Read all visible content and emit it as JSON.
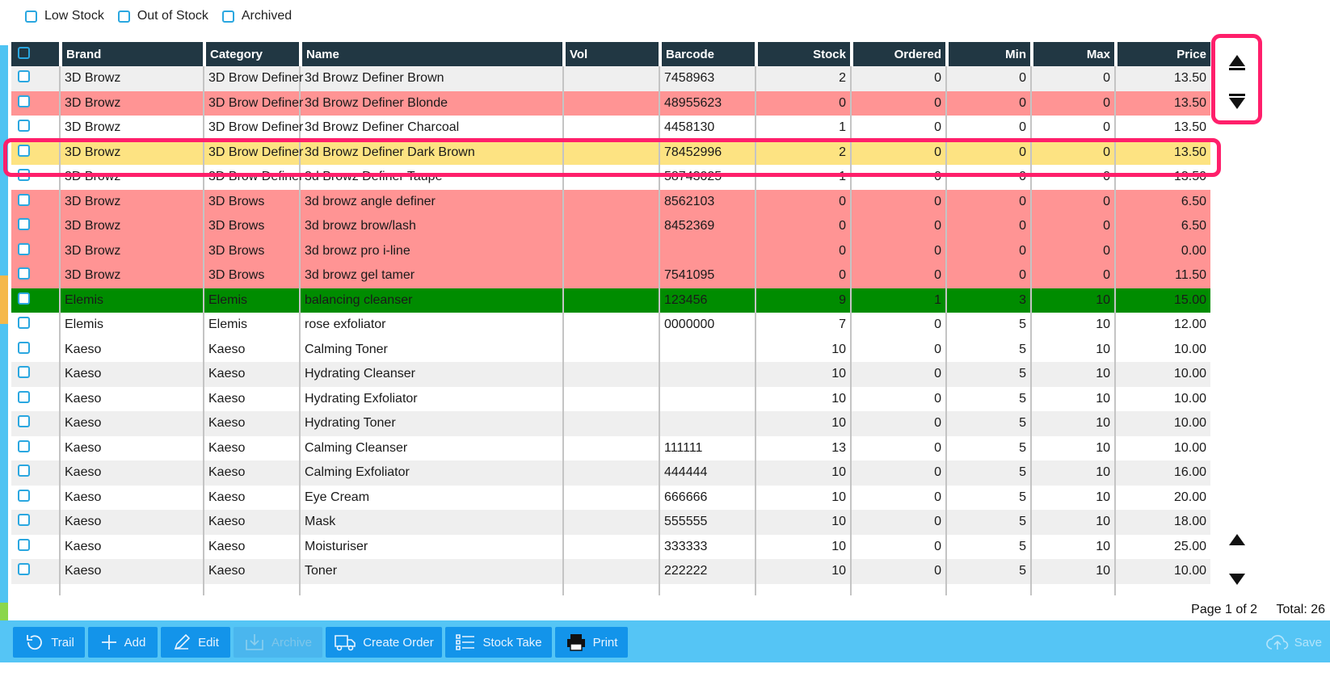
{
  "filters": [
    {
      "label": "Low Stock",
      "checked": false
    },
    {
      "label": "Out of Stock",
      "checked": false
    },
    {
      "label": "Archived",
      "checked": false
    }
  ],
  "table": {
    "columns": [
      "Brand",
      "Category",
      "Name",
      "Vol",
      "Barcode",
      "Stock",
      "Ordered",
      "Min",
      "Max",
      "Price"
    ],
    "rows": [
      {
        "style": "grey",
        "cells": [
          "3D Browz",
          "3D Brow Definer",
          "3d Browz Definer  Brown",
          "",
          "7458963",
          "2",
          "0",
          "0",
          "0",
          "13.50"
        ]
      },
      {
        "style": "red",
        "cells": [
          "3D Browz",
          "3D Brow Definer",
          "3d Browz Definer Blonde",
          "",
          "48955623",
          "0",
          "0",
          "0",
          "0",
          "13.50"
        ]
      },
      {
        "style": "white",
        "cells": [
          "3D Browz",
          "3D Brow Definer",
          "3d Browz Definer Charcoal",
          "",
          "4458130",
          "1",
          "0",
          "0",
          "0",
          "13.50"
        ]
      },
      {
        "style": "yellow",
        "cells": [
          "3D Browz",
          "3D Brow Definer",
          "3d Browz Definer Dark Brown",
          "",
          "78452996",
          "2",
          "0",
          "0",
          "0",
          "13.50"
        ]
      },
      {
        "style": "white",
        "cells": [
          "3D Browz",
          "3D Brow Definer",
          "3d Browz Definer Taupe",
          "",
          "58743025",
          "1",
          "0",
          "0",
          "0",
          "13.50"
        ]
      },
      {
        "style": "red",
        "cells": [
          "3D Browz",
          "3D Brows",
          "3d browz angle definer",
          "",
          "8562103",
          "0",
          "0",
          "0",
          "0",
          "6.50"
        ]
      },
      {
        "style": "red",
        "cells": [
          "3D Browz",
          "3D Brows",
          "3d browz brow/lash",
          "",
          "8452369",
          "0",
          "0",
          "0",
          "0",
          "6.50"
        ]
      },
      {
        "style": "red",
        "cells": [
          "3D Browz",
          "3D Brows",
          "3d browz pro i-line",
          "",
          "",
          "0",
          "0",
          "0",
          "0",
          "0.00"
        ]
      },
      {
        "style": "red",
        "cells": [
          "3D Browz",
          "3D Brows",
          "3d browz gel tamer",
          "",
          "7541095",
          "0",
          "0",
          "0",
          "0",
          "11.50"
        ]
      },
      {
        "style": "green",
        "cells": [
          "Elemis",
          "Elemis",
          "balancing cleanser",
          "",
          "123456",
          "9",
          "1",
          "3",
          "10",
          "15.00"
        ]
      },
      {
        "style": "white",
        "cells": [
          "Elemis",
          "Elemis",
          "rose exfoliator",
          "",
          "0000000",
          "7",
          "0",
          "5",
          "10",
          "12.00"
        ]
      },
      {
        "style": "white",
        "cells": [
          "Kaeso",
          "Kaeso",
          "Calming Toner",
          "",
          "",
          "10",
          "0",
          "5",
          "10",
          "10.00"
        ]
      },
      {
        "style": "grey",
        "cells": [
          "Kaeso",
          "Kaeso",
          "Hydrating Cleanser",
          "",
          "",
          "10",
          "0",
          "5",
          "10",
          "10.00"
        ]
      },
      {
        "style": "white",
        "cells": [
          "Kaeso",
          "Kaeso",
          "Hydrating Exfoliator",
          "",
          "",
          "10",
          "0",
          "5",
          "10",
          "10.00"
        ]
      },
      {
        "style": "grey",
        "cells": [
          "Kaeso",
          "Kaeso",
          "Hydrating Toner",
          "",
          "",
          "10",
          "0",
          "5",
          "10",
          "10.00"
        ]
      },
      {
        "style": "white",
        "cells": [
          "Kaeso",
          "Kaeso",
          "Calming Cleanser",
          "",
          "111111",
          "13",
          "0",
          "5",
          "10",
          "10.00"
        ]
      },
      {
        "style": "grey",
        "cells": [
          "Kaeso",
          "Kaeso",
          "Calming Exfoliator",
          "",
          "444444",
          "10",
          "0",
          "5",
          "10",
          "16.00"
        ]
      },
      {
        "style": "white",
        "cells": [
          "Kaeso",
          "Kaeso",
          "Eye Cream",
          "",
          "666666",
          "10",
          "0",
          "5",
          "10",
          "20.00"
        ]
      },
      {
        "style": "grey",
        "cells": [
          "Kaeso",
          "Kaeso",
          "Mask",
          "",
          "555555",
          "10",
          "0",
          "5",
          "10",
          "18.00"
        ]
      },
      {
        "style": "white",
        "cells": [
          "Kaeso",
          "Kaeso",
          "Moisturiser",
          "",
          "333333",
          "10",
          "0",
          "5",
          "10",
          "25.00"
        ]
      },
      {
        "style": "grey",
        "cells": [
          "Kaeso",
          "Kaeso",
          "Toner",
          "",
          "222222",
          "10",
          "0",
          "5",
          "10",
          "10.00"
        ]
      }
    ]
  },
  "pagination": {
    "page_text": "Page 1 of 2",
    "total_text": "Total: 26"
  },
  "toolbar": {
    "trail": "Trail",
    "add": "Add",
    "edit": "Edit",
    "archive": "Archive",
    "create_order": "Create Order",
    "stock_take": "Stock Take",
    "print": "Print",
    "save": "Save"
  },
  "icons": {
    "scroll_top": "scroll-to-top-icon",
    "scroll_bottom": "scroll-to-bottom-icon",
    "scroll_up": "scroll-up-icon",
    "scroll_down": "scroll-down-icon"
  },
  "colors": {
    "header_bg": "#213743",
    "low_stock_row": "#ff9494",
    "selected_row": "#fde382",
    "ordered_row": "#008c00",
    "toolbar_bg": "#55c5f5",
    "button_bg": "#1394ea",
    "highlight": "#ff1f6b"
  }
}
